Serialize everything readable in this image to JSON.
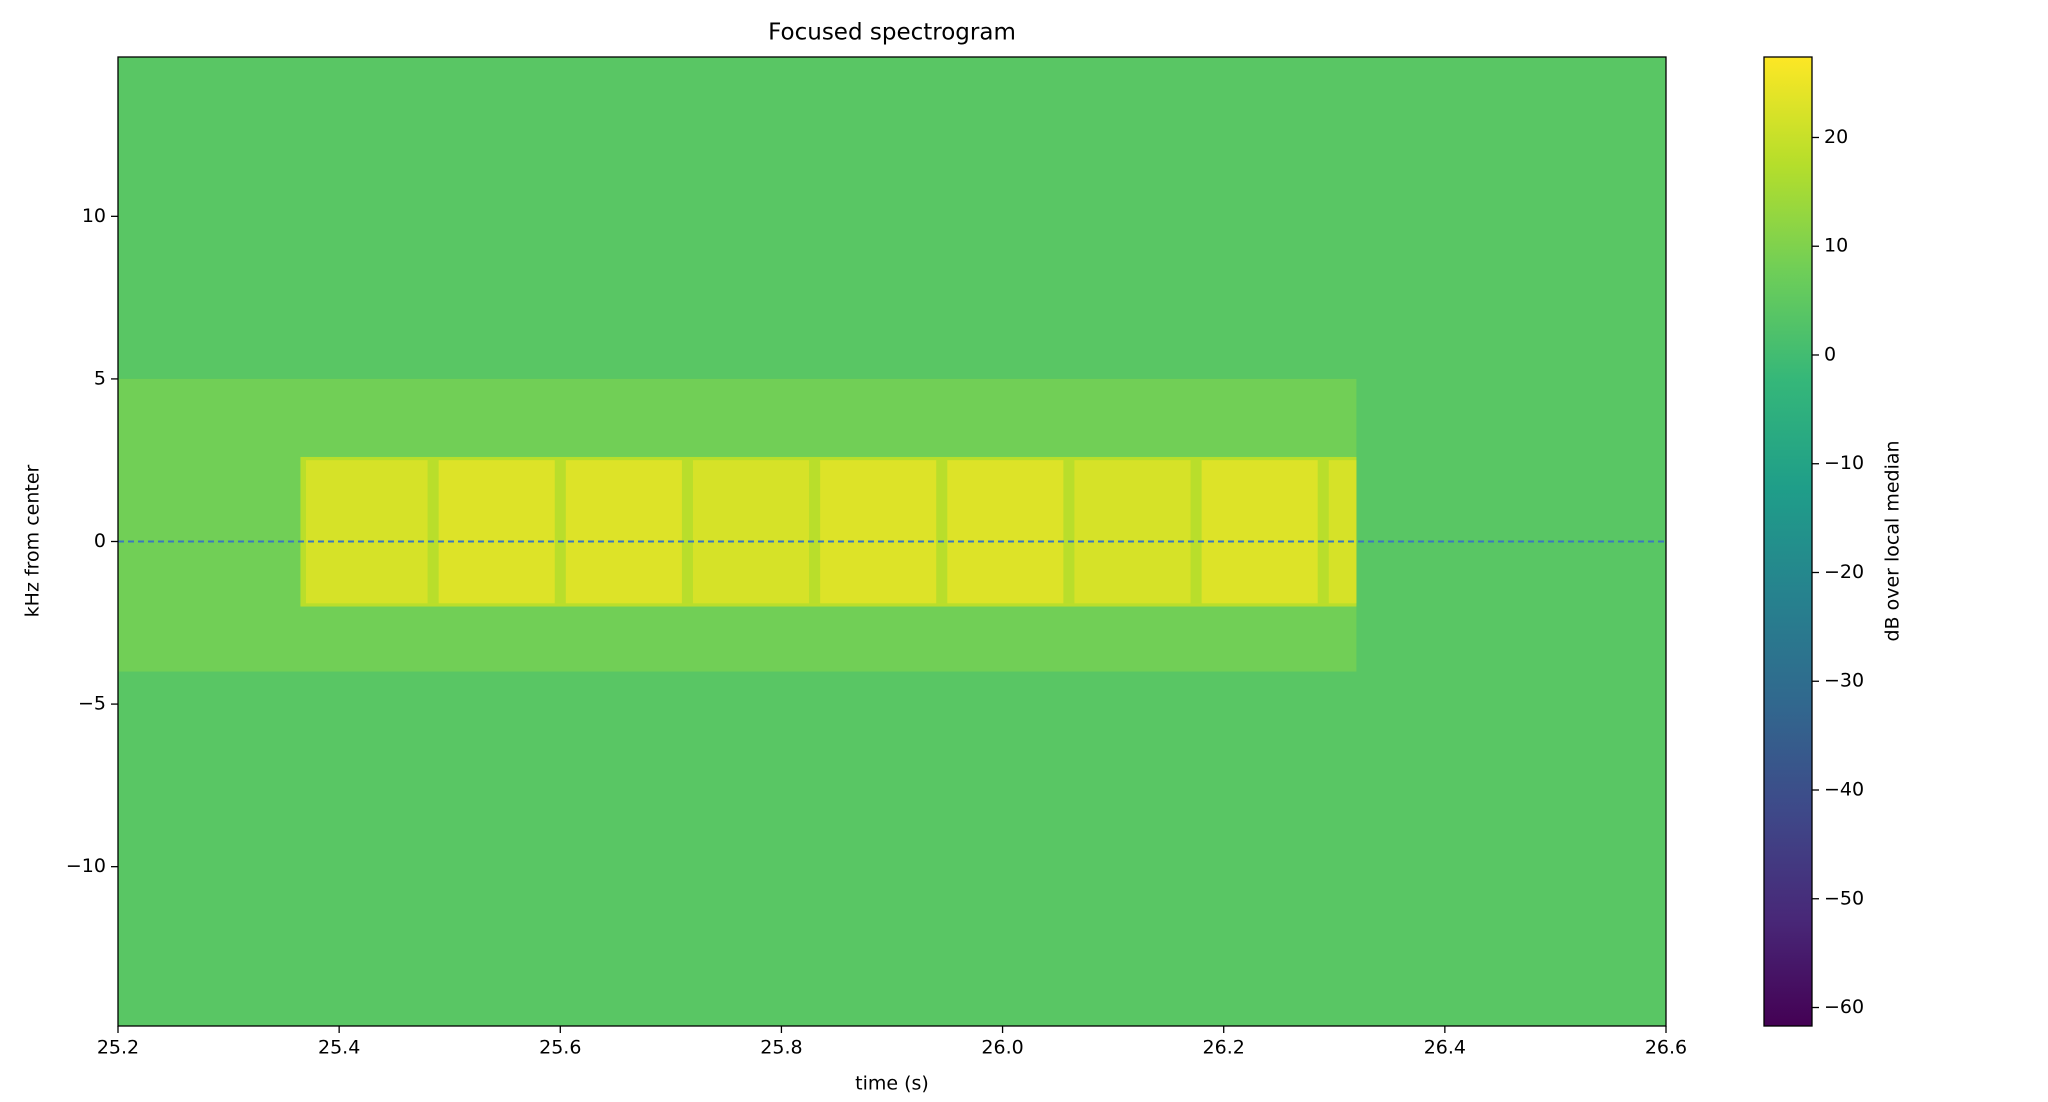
{
  "chart_data": {
    "type": "spectrogram",
    "title": "Focused spectrogram",
    "x_label": "time (s)",
    "y_label": "kHz from center",
    "colorbar_label": "dB over local median",
    "colormap": "viridis",
    "xlim": [
      25.2,
      26.6
    ],
    "xticks": [
      25.2,
      25.4,
      25.6,
      25.8,
      {
        "value": 26,
        "label": "26.0"
      },
      26.2,
      26.4,
      26.6
    ],
    "ylim": [
      -14.9,
      14.9
    ],
    "yticks": [
      {
        "value": -10,
        "label": "−10"
      },
      {
        "value": -5,
        "label": "−5"
      },
      0,
      5,
      10
    ],
    "clim": [
      -61.7,
      27.4
    ],
    "cticks": [
      {
        "value": -60,
        "label": "−60"
      },
      {
        "value": -50,
        "label": "−50"
      },
      {
        "value": -40,
        "label": "−40"
      },
      {
        "value": -30,
        "label": "−30"
      },
      {
        "value": -20,
        "label": "−20"
      },
      {
        "value": -10,
        "label": "−10"
      },
      0,
      10,
      20
    ],
    "hline": 0,
    "hline_color": "#3a78c0",
    "patches": [
      {
        "t0": 25.2,
        "t1": 26.6,
        "f0": -14.9,
        "f1": 14.9,
        "db": 4
      },
      {
        "t0": 25.2,
        "t1": 26.32,
        "f0": -4,
        "f1": 5,
        "db": 8
      },
      {
        "t0": 25.365,
        "t1": 26.32,
        "f0": -2,
        "f1": 2.6,
        "db": 18
      },
      {
        "t0": 25.37,
        "t1": 25.48,
        "f0": -1.9,
        "f1": 2.5,
        "db": 22
      },
      {
        "t0": 25.49,
        "t1": 25.595,
        "f0": -1.9,
        "f1": 2.5,
        "db": 23
      },
      {
        "t0": 25.605,
        "t1": 25.71,
        "f0": -1.9,
        "f1": 2.5,
        "db": 23
      },
      {
        "t0": 25.72,
        "t1": 25.825,
        "f0": -1.9,
        "f1": 2.5,
        "db": 22
      },
      {
        "t0": 25.835,
        "t1": 25.94,
        "f0": -1.9,
        "f1": 2.5,
        "db": 23
      },
      {
        "t0": 25.95,
        "t1": 26.055,
        "f0": -1.9,
        "f1": 2.5,
        "db": 23
      },
      {
        "t0": 26.065,
        "t1": 26.17,
        "f0": -1.9,
        "f1": 2.5,
        "db": 22
      },
      {
        "t0": 26.18,
        "t1": 26.285,
        "f0": -1.9,
        "f1": 2.5,
        "db": 23
      },
      {
        "t0": 26.295,
        "t1": 26.32,
        "f0": -1.9,
        "f1": 2.5,
        "db": 22
      }
    ]
  }
}
